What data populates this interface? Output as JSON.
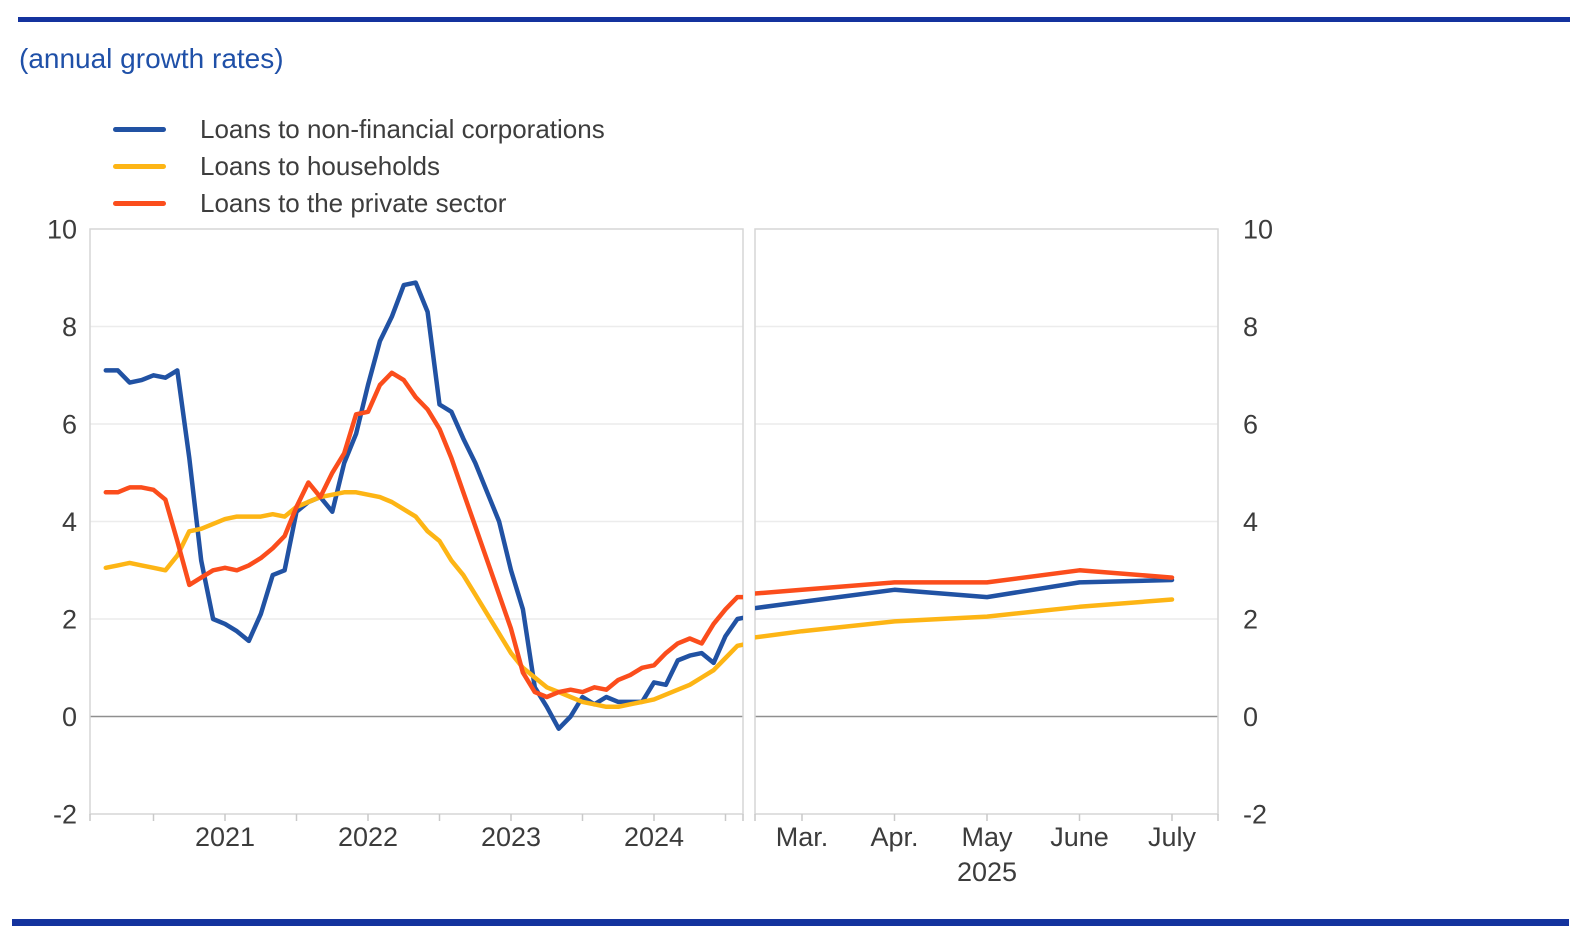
{
  "title": "(annual growth rates)",
  "colors": {
    "blue": "#2152a3",
    "yellow": "#fdb515",
    "red": "#fb4d1c",
    "rule_blue": "#14339e",
    "title_text": "#1f50a8",
    "axis_text": "#3c3c3c",
    "grid": "#ececec",
    "frame": "#d6d6d6",
    "zero_line": "#8f8f8f",
    "tick": "#c9c9c9"
  },
  "legend": {
    "items": [
      {
        "label": "Loans to non-financial corporations",
        "color_key": "blue"
      },
      {
        "label": "Loans to households",
        "color_key": "yellow"
      },
      {
        "label": "Loans to the private sector",
        "color_key": "red"
      }
    ]
  },
  "chart_data": {
    "type": "line",
    "title": "(annual growth rates)",
    "ylabel": "",
    "xlabel": "",
    "ylim": [
      -2,
      10
    ],
    "yticks": [
      10,
      8,
      6,
      4,
      2,
      0,
      -2
    ],
    "grid": true,
    "legend_position": "top-left",
    "zero_line": true,
    "panels": [
      {
        "name": "monthly-history",
        "x_start": "2020-09",
        "x_end": "2025-02",
        "frequency": "monthly",
        "xticks": [
          {
            "label": "2021",
            "month_index": 10
          },
          {
            "label": "2022",
            "month_index": 22
          },
          {
            "label": "2023",
            "month_index": 34
          },
          {
            "label": "2024",
            "month_index": 46
          }
        ],
        "series": [
          {
            "name": "Loans to non-financial corporations",
            "color_key": "blue",
            "values": [
              7.1,
              7.1,
              6.85,
              6.9,
              7.0,
              6.95,
              7.1,
              5.3,
              3.2,
              2.0,
              1.9,
              1.75,
              1.55,
              2.1,
              2.9,
              3.0,
              4.2,
              4.4,
              4.5,
              4.2,
              5.2,
              5.8,
              6.8,
              7.7,
              8.2,
              8.85,
              8.9,
              8.3,
              6.4,
              6.25,
              5.7,
              5.2,
              4.6,
              4.0,
              3.0,
              2.2,
              0.6,
              0.2,
              -0.25,
              0.0,
              0.4,
              0.25,
              0.4,
              0.3,
              0.3,
              0.3,
              0.7,
              0.65,
              1.15,
              1.25,
              1.3,
              1.1,
              1.65,
              2.0,
              2.05
            ]
          },
          {
            "name": "Loans to households",
            "color_key": "yellow",
            "values": [
              3.05,
              3.1,
              3.15,
              3.1,
              3.05,
              3.0,
              3.3,
              3.8,
              3.85,
              3.95,
              4.05,
              4.1,
              4.1,
              4.1,
              4.15,
              4.1,
              4.3,
              4.4,
              4.5,
              4.55,
              4.6,
              4.6,
              4.55,
              4.5,
              4.4,
              4.25,
              4.1,
              3.8,
              3.6,
              3.2,
              2.9,
              2.5,
              2.1,
              1.7,
              1.3,
              1.0,
              0.8,
              0.6,
              0.5,
              0.4,
              0.3,
              0.25,
              0.2,
              0.2,
              0.25,
              0.3,
              0.35,
              0.45,
              0.55,
              0.65,
              0.8,
              0.95,
              1.2,
              1.45,
              1.5
            ]
          },
          {
            "name": "Loans to the private sector",
            "color_key": "red",
            "values": [
              4.6,
              4.6,
              4.7,
              4.7,
              4.65,
              4.45,
              3.6,
              2.7,
              2.85,
              3.0,
              3.05,
              3.0,
              3.1,
              3.25,
              3.45,
              3.7,
              4.3,
              4.8,
              4.5,
              5.0,
              5.4,
              6.2,
              6.25,
              6.8,
              7.05,
              6.9,
              6.55,
              6.3,
              5.9,
              5.3,
              4.6,
              3.9,
              3.2,
              2.5,
              1.8,
              0.9,
              0.5,
              0.4,
              0.5,
              0.55,
              0.5,
              0.6,
              0.55,
              0.75,
              0.85,
              1.0,
              1.05,
              1.3,
              1.5,
              1.6,
              1.5,
              1.9,
              2.2,
              2.45,
              2.45
            ]
          }
        ]
      },
      {
        "name": "recent-months-2025",
        "x_start": "2025-02",
        "x_end": "2025-07",
        "frequency": "monthly",
        "xticks": [
          {
            "label": "Mar.",
            "month_index": 1
          },
          {
            "label": "Apr.",
            "month_index": 2
          },
          {
            "label": "May",
            "month_index": 3
          },
          {
            "label": "June",
            "month_index": 4
          },
          {
            "label": "July",
            "month_index": 5
          }
        ],
        "year_label": {
          "label": "2025",
          "month_index": 3
        },
        "series": [
          {
            "name": "Loans to non-financial corporations",
            "color_key": "blue",
            "values": [
              2.1,
              2.35,
              2.6,
              2.45,
              2.75,
              2.8
            ]
          },
          {
            "name": "Loans to households",
            "color_key": "yellow",
            "values": [
              1.5,
              1.75,
              1.95,
              2.05,
              2.25,
              2.4
            ]
          },
          {
            "name": "Loans to the private sector",
            "color_key": "red",
            "values": [
              2.45,
              2.6,
              2.75,
              2.75,
              3.0,
              2.85
            ]
          }
        ]
      }
    ]
  }
}
